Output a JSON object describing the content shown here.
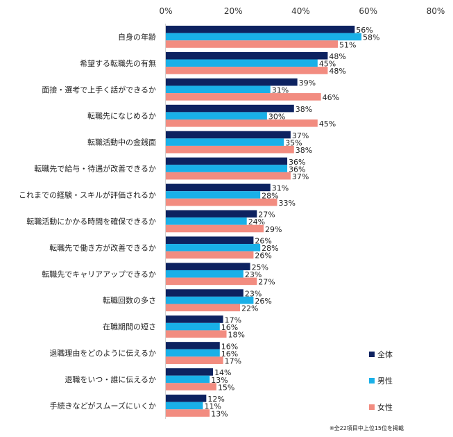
{
  "chart_data": {
    "type": "bar",
    "orientation": "horizontal",
    "xlim": [
      0,
      80
    ],
    "x_ticks": [
      "0%",
      "20%",
      "40%",
      "60%",
      "80%"
    ],
    "x_tick_values": [
      0,
      20,
      40,
      60,
      80
    ],
    "grid": false,
    "legend_position": "bottom-right",
    "categories": [
      "自身の年齢",
      "希望する転職先の有無",
      "面接・選考で上手く話ができるか",
      "転職先になじめるか",
      "転職活動中の金銭面",
      "転職先で給与・待遇が改善できるか",
      "これまでの経験・スキルが評価されるか",
      "転職活動にかかる時間を確保できるか",
      "転職先で働き方が改善できるか",
      "転職先でキャリアアップできるか",
      "転職回数の多さ",
      "在職期間の短さ",
      "退職理由をどのように伝えるか",
      "退職をいつ・誰に伝えるか",
      "手続きなどがスムーズにいくか"
    ],
    "series": [
      {
        "name": "全体",
        "color": "#0d2260",
        "values": [
          56,
          48,
          39,
          38,
          37,
          36,
          31,
          27,
          26,
          25,
          23,
          17,
          16,
          14,
          12
        ]
      },
      {
        "name": "男性",
        "color": "#19b0e8",
        "values": [
          58,
          45,
          31,
          30,
          35,
          36,
          28,
          24,
          28,
          23,
          26,
          16,
          16,
          13,
          11
        ]
      },
      {
        "name": "女性",
        "color": "#f28c80",
        "values": [
          51,
          48,
          46,
          45,
          38,
          37,
          33,
          29,
          26,
          27,
          22,
          18,
          17,
          15,
          13
        ]
      }
    ],
    "value_suffix": "%",
    "note": "※全22項目中上位15位を掲載"
  }
}
